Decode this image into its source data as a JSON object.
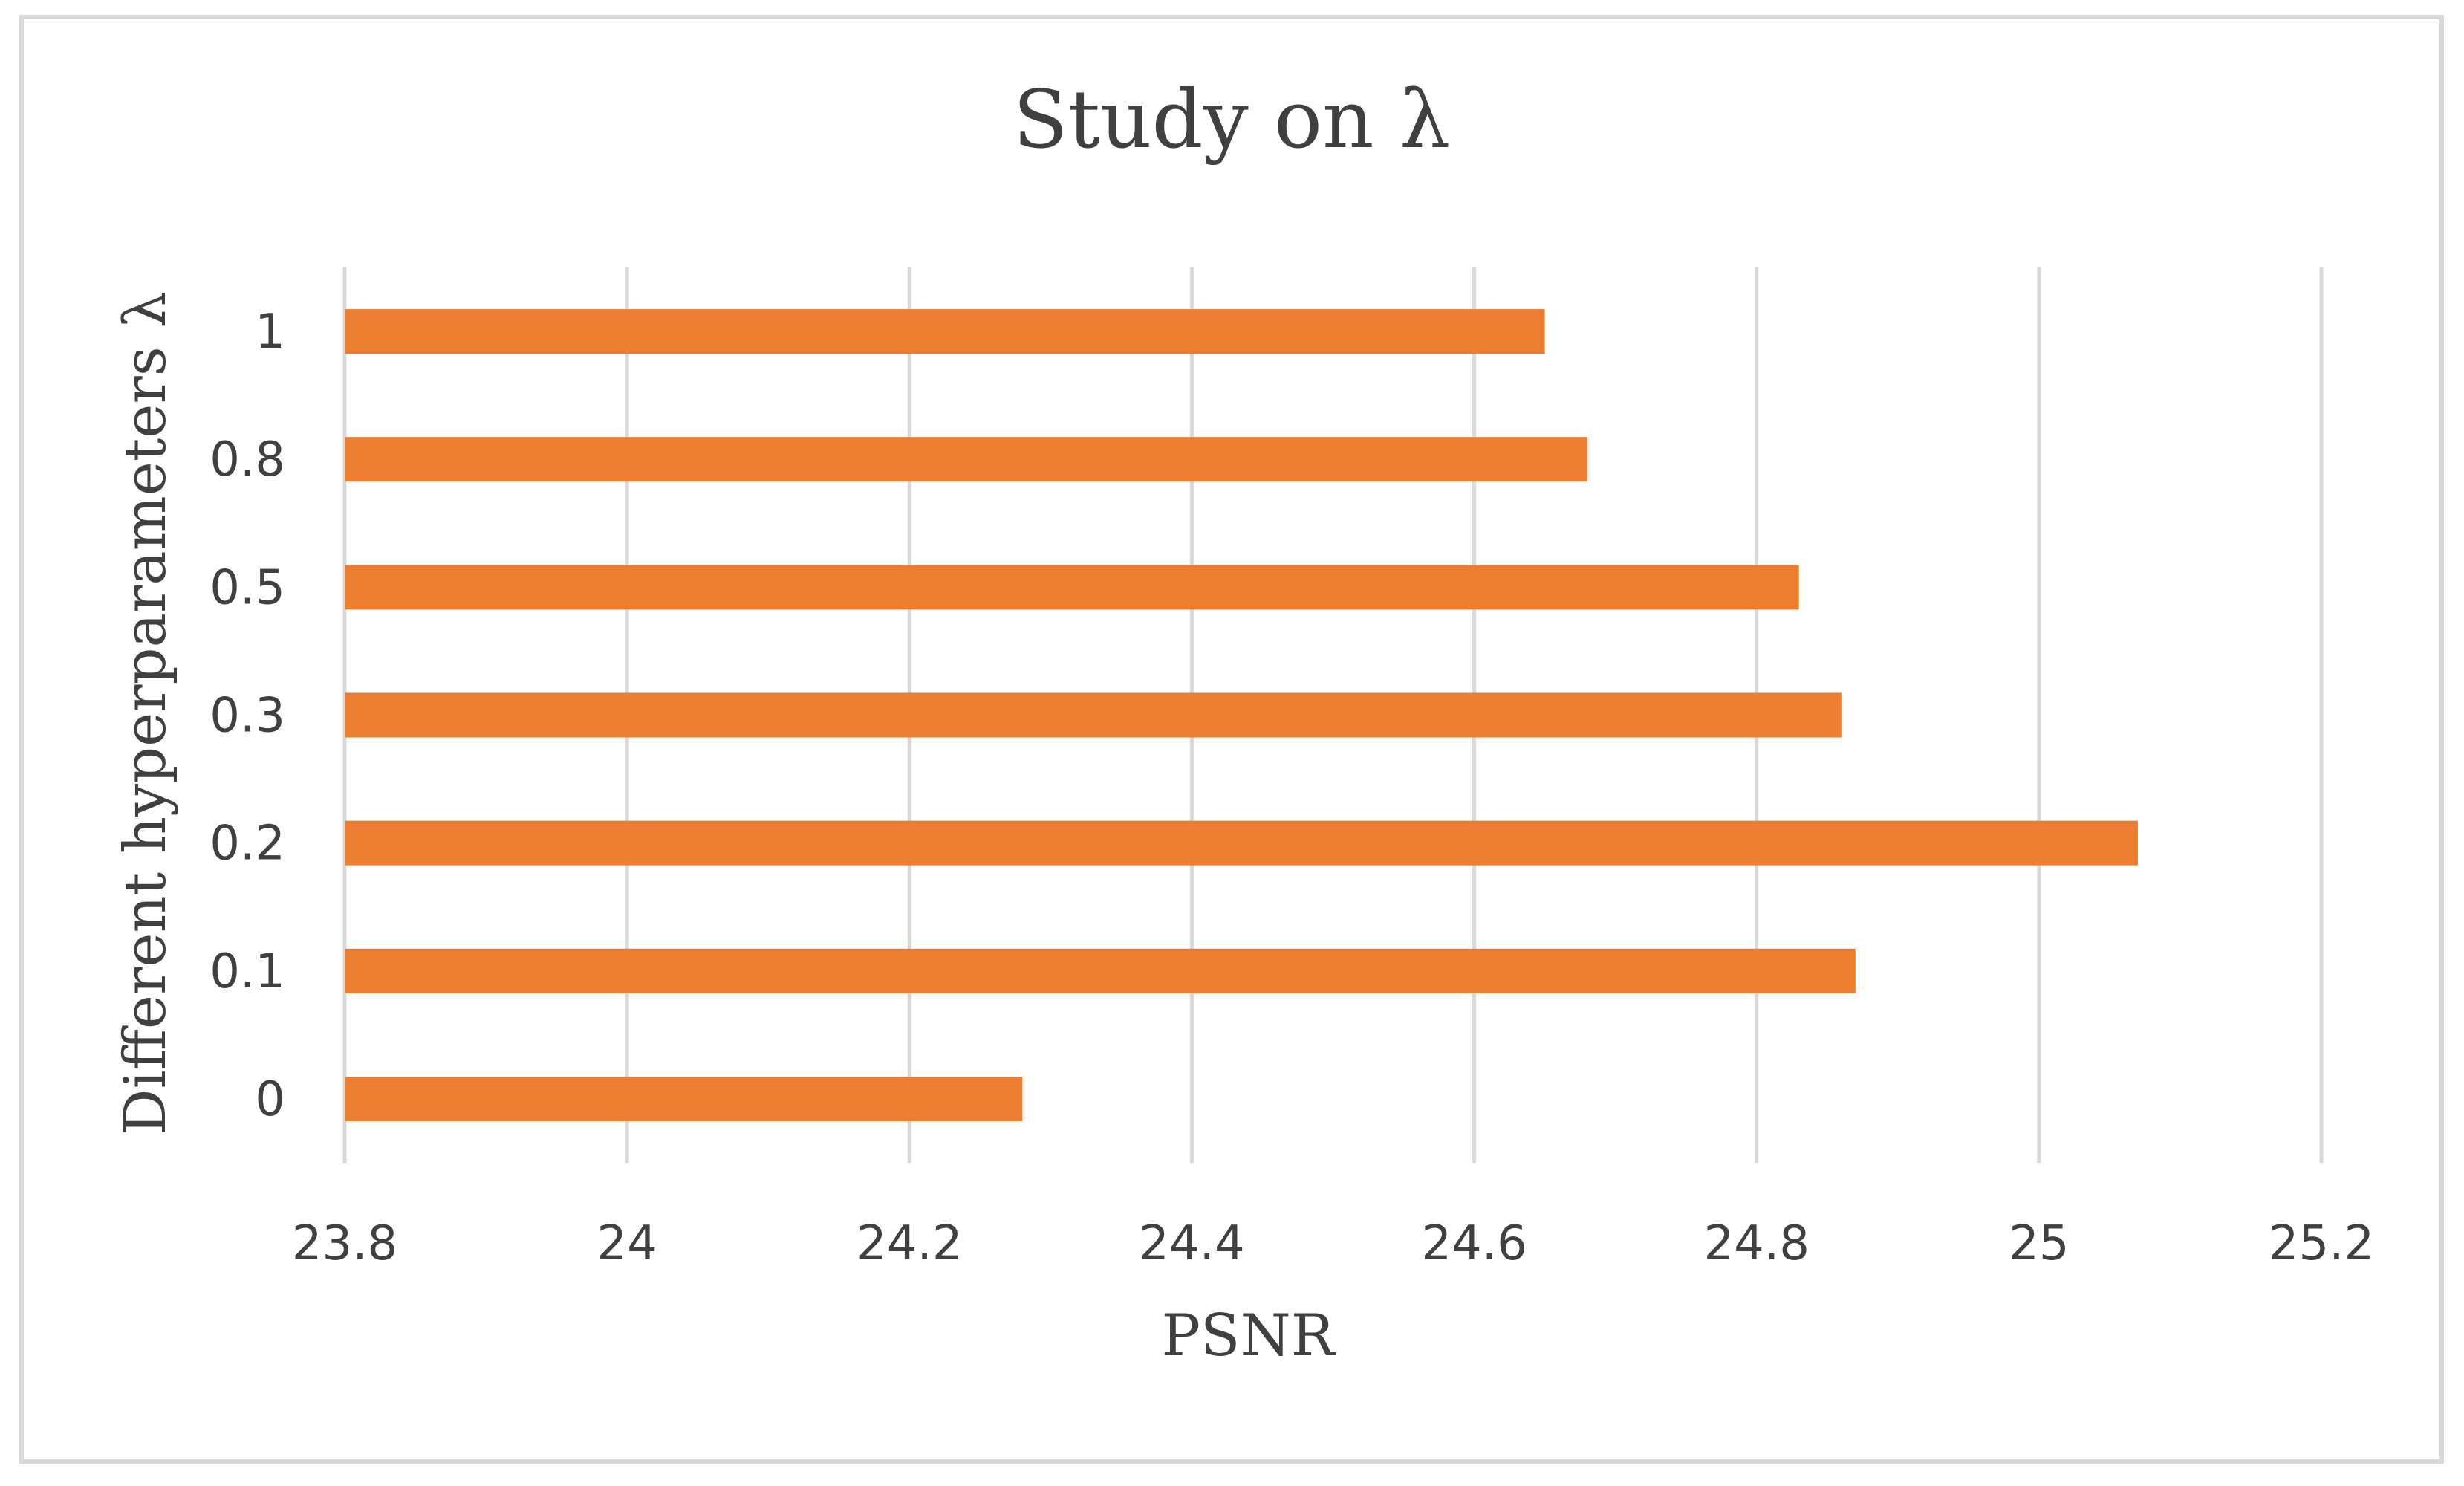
{
  "chart_data": {
    "type": "bar",
    "orientation": "horizontal",
    "title": "Study on λ",
    "xlabel": "PSNR",
    "ylabel": "Different hyperparameters λ",
    "categories": [
      "1",
      "0.8",
      "0.5",
      "0.3",
      "0.2",
      "0.1",
      "0"
    ],
    "values": [
      24.65,
      24.68,
      24.83,
      24.86,
      25.07,
      24.87,
      24.28
    ],
    "xlim": [
      23.8,
      25.2
    ],
    "x_ticks": [
      "23.8",
      "24",
      "24.2",
      "24.4",
      "24.6",
      "24.8",
      "25",
      "25.2"
    ],
    "grid": "vertical",
    "legend": "none",
    "colors": {
      "bar": "#ED7D31",
      "grid": "#d9d9d9",
      "text": "#404040",
      "border": "#d9d9d9"
    }
  }
}
